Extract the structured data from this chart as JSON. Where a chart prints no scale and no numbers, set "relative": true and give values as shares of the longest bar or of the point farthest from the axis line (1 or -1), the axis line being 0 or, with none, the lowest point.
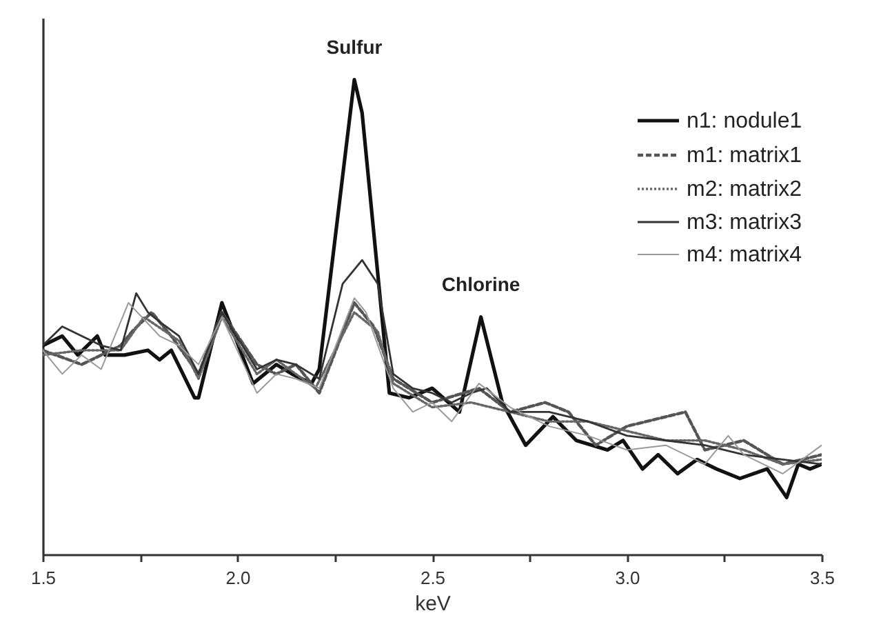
{
  "chart_data": {
    "type": "line",
    "xlabel": "keV",
    "relative": true,
    "xlim": [
      1.5,
      3.5
    ],
    "xticks": [
      {
        "value": 1.5,
        "label": "1.5"
      },
      {
        "value": 1.75,
        "label": null
      },
      {
        "value": 2,
        "label": "2.0"
      },
      {
        "value": 2.25,
        "label": null
      },
      {
        "value": 2.5,
        "label": "2.5"
      },
      {
        "value": 2.75,
        "label": null
      },
      {
        "value": 3,
        "label": "3.0"
      },
      {
        "value": 3.25,
        "label": null
      },
      {
        "value": 3.5,
        "label": "3.5"
      }
    ],
    "legend": "top right",
    "grid": false,
    "annotations": [
      {
        "text": "Sulfur",
        "x": 2.3,
        "y": 1
      },
      {
        "text": "Chlorine",
        "x": 2.625,
        "y": 0.5
      }
    ],
    "series": [
      {
        "name": "n1: nodule1",
        "color": "#111111",
        "line_style": "solid",
        "x": [
          1.5,
          1.55,
          1.59,
          1.64,
          1.66,
          1.71,
          1.77,
          1.8,
          1.83,
          1.89,
          1.9,
          1.96,
          2.04,
          2.1,
          2.14,
          2.19,
          2.21,
          2.3,
          2.32,
          2.39,
          2.44,
          2.5,
          2.57,
          2.625,
          2.68,
          2.74,
          2.81,
          2.87,
          2.95,
          2.99,
          3.04,
          3.08,
          3.13,
          3.18,
          3.23,
          3.29,
          3.36,
          3.41,
          3.44,
          3.47,
          3.5
        ],
        "values": [
          0.44,
          0.46,
          0.42,
          0.46,
          0.42,
          0.42,
          0.43,
          0.41,
          0.43,
          0.33,
          0.33,
          0.53,
          0.36,
          0.4,
          0.38,
          0.36,
          0.39,
          1,
          0.93,
          0.34,
          0.33,
          0.35,
          0.3,
          0.5,
          0.32,
          0.23,
          0.29,
          0.24,
          0.22,
          0.24,
          0.18,
          0.21,
          0.17,
          0.2,
          0.18,
          0.16,
          0.18,
          0.12,
          0.19,
          0.18,
          0.19
        ]
      },
      {
        "name": "m1: matrix1",
        "color": "#555555",
        "line_style": "dashed",
        "x": [
          1.5,
          1.6,
          1.7,
          1.73,
          1.78,
          1.83,
          1.9,
          1.96,
          2.05,
          2.1,
          2.15,
          2.21,
          2.3,
          2.35,
          2.4,
          2.5,
          2.62,
          2.7,
          2.79,
          2.85,
          2.92,
          3.0,
          3.05,
          3.15,
          3.2,
          3.3,
          3.4,
          3.5
        ],
        "values": [
          0.43,
          0.4,
          0.44,
          0.47,
          0.51,
          0.46,
          0.38,
          0.51,
          0.4,
          0.38,
          0.4,
          0.34,
          0.53,
          0.48,
          0.37,
          0.32,
          0.35,
          0.3,
          0.32,
          0.3,
          0.23,
          0.27,
          0.28,
          0.3,
          0.22,
          0.24,
          0.19,
          0.21
        ]
      },
      {
        "name": "m2: matrix2",
        "color": "#666666",
        "line_style": "dotted",
        "x": [
          1.5,
          1.6,
          1.7,
          1.76,
          1.85,
          1.9,
          1.96,
          2.05,
          2.1,
          2.2,
          2.3,
          2.36,
          2.4,
          2.5,
          2.6,
          2.7,
          2.8,
          2.9,
          3.0,
          3.1,
          3.2,
          3.3,
          3.4,
          3.5
        ],
        "values": [
          0.42,
          0.43,
          0.43,
          0.5,
          0.45,
          0.37,
          0.5,
          0.38,
          0.41,
          0.35,
          0.51,
          0.47,
          0.36,
          0.31,
          0.32,
          0.3,
          0.28,
          0.28,
          0.26,
          0.24,
          0.24,
          0.22,
          0.19,
          0.2
        ]
      },
      {
        "name": "m3: matrix3",
        "color": "#333333",
        "line_style": "solid",
        "x": [
          1.5,
          1.55,
          1.6,
          1.65,
          1.7,
          1.74,
          1.77,
          1.8,
          1.85,
          1.9,
          1.96,
          2.05,
          2.1,
          2.15,
          2.21,
          2.27,
          2.32,
          2.36,
          2.4,
          2.45,
          2.5,
          2.55,
          2.6,
          2.64,
          2.7,
          2.8,
          2.9,
          3.0,
          3.1,
          3.2,
          3.3,
          3.4,
          3.5
        ],
        "values": [
          0.44,
          0.48,
          0.46,
          0.44,
          0.43,
          0.55,
          0.51,
          0.49,
          0.46,
          0.38,
          0.51,
          0.39,
          0.41,
          0.4,
          0.37,
          0.57,
          0.62,
          0.57,
          0.38,
          0.35,
          0.34,
          0.32,
          0.34,
          0.35,
          0.3,
          0.3,
          0.28,
          0.25,
          0.24,
          0.23,
          0.21,
          0.2,
          0.19
        ]
      },
      {
        "name": "m4: matrix4",
        "color": "#999999",
        "line_style": "solid",
        "x": [
          1.5,
          1.55,
          1.6,
          1.65,
          1.72,
          1.8,
          1.85,
          1.9,
          1.96,
          2.05,
          2.1,
          2.15,
          2.21,
          2.3,
          2.33,
          2.4,
          2.45,
          2.5,
          2.55,
          2.62,
          2.7,
          2.8,
          2.9,
          3.0,
          3.1,
          3.2,
          3.26,
          3.3,
          3.4,
          3.5
        ],
        "values": [
          0.43,
          0.38,
          0.42,
          0.39,
          0.53,
          0.46,
          0.44,
          0.4,
          0.5,
          0.34,
          0.38,
          0.37,
          0.35,
          0.54,
          0.51,
          0.35,
          0.3,
          0.32,
          0.28,
          0.36,
          0.31,
          0.27,
          0.25,
          0.22,
          0.23,
          0.19,
          0.25,
          0.21,
          0.17,
          0.23
        ]
      }
    ]
  }
}
